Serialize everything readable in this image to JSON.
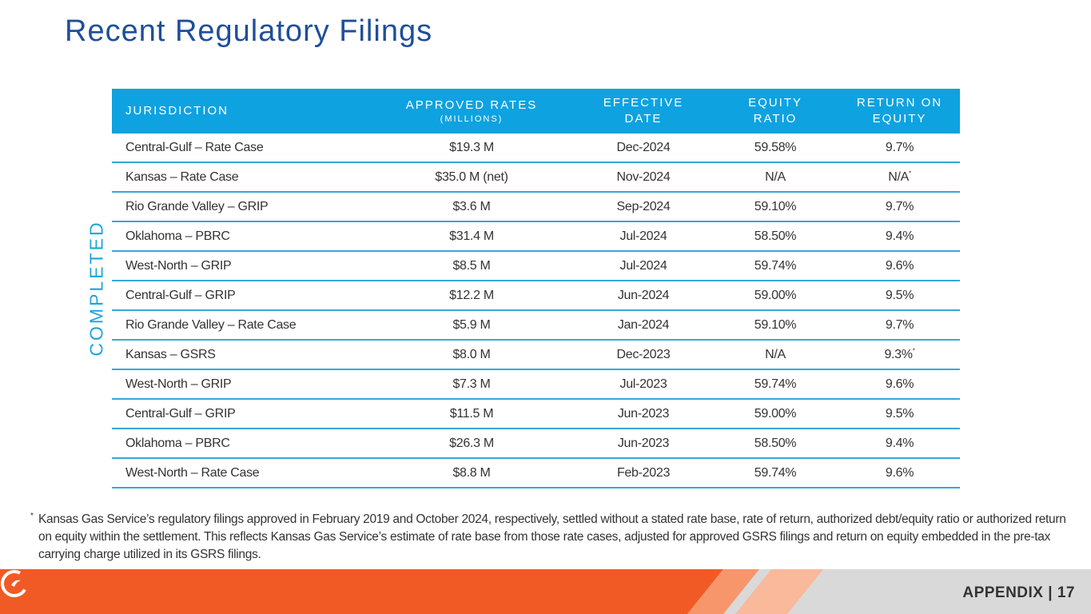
{
  "title": "Recent Regulatory Filings",
  "side_label": "COMPLETED",
  "table": {
    "headers": {
      "jurisdiction": "JURISDICTION",
      "approved_rates": "APPROVED RATES",
      "approved_rates_sub": "(MILLIONS)",
      "effective_date_1": "EFFECTIVE",
      "effective_date_2": "DATE",
      "equity_ratio_1": "EQUITY",
      "equity_ratio_2": "RATIO",
      "roe_1": "RETURN ON",
      "roe_2": "EQUITY"
    },
    "rows": [
      {
        "jurisdiction": "Central-Gulf – Rate Case",
        "rates": "$19.3 M",
        "date": "Dec-2024",
        "equity": "59.58%",
        "roe": "9.7%",
        "roe_note": ""
      },
      {
        "jurisdiction": "Kansas – Rate Case",
        "rates": "$35.0 M (net)",
        "date": "Nov-2024",
        "equity": "N/A",
        "roe": "N/A",
        "roe_note": "*"
      },
      {
        "jurisdiction": "Rio Grande Valley – GRIP",
        "rates": "$3.6 M",
        "date": "Sep-2024",
        "equity": "59.10%",
        "roe": "9.7%",
        "roe_note": ""
      },
      {
        "jurisdiction": "Oklahoma – PBRC",
        "rates": "$31.4 M",
        "date": "Jul-2024",
        "equity": "58.50%",
        "roe": "9.4%",
        "roe_note": ""
      },
      {
        "jurisdiction": "West-North – GRIP",
        "rates": "$8.5 M",
        "date": "Jul-2024",
        "equity": "59.74%",
        "roe": "9.6%",
        "roe_note": ""
      },
      {
        "jurisdiction": "Central-Gulf – GRIP",
        "rates": "$12.2 M",
        "date": "Jun-2024",
        "equity": "59.00%",
        "roe": "9.5%",
        "roe_note": ""
      },
      {
        "jurisdiction": "Rio Grande Valley – Rate Case",
        "rates": "$5.9 M",
        "date": "Jan-2024",
        "equity": "59.10%",
        "roe": "9.7%",
        "roe_note": ""
      },
      {
        "jurisdiction": "Kansas – GSRS",
        "rates": "$8.0 M",
        "date": "Dec-2023",
        "equity": "N/A",
        "roe": "9.3%",
        "roe_note": "*"
      },
      {
        "jurisdiction": "West-North – GRIP",
        "rates": "$7.3 M",
        "date": "Jul-2023",
        "equity": "59.74%",
        "roe": "9.6%",
        "roe_note": ""
      },
      {
        "jurisdiction": "Central-Gulf – GRIP",
        "rates": "$11.5 M",
        "date": "Jun-2023",
        "equity": "59.00%",
        "roe": "9.5%",
        "roe_note": ""
      },
      {
        "jurisdiction": "Oklahoma – PBRC",
        "rates": "$26.3 M",
        "date": "Jun-2023",
        "equity": "58.50%",
        "roe": "9.4%",
        "roe_note": ""
      },
      {
        "jurisdiction": "West-North – Rate Case",
        "rates": "$8.8 M",
        "date": "Feb-2023",
        "equity": "59.74%",
        "roe": "9.6%",
        "roe_note": ""
      }
    ]
  },
  "footnote": {
    "marker": "*",
    "text": "Kansas Gas Service’s regulatory filings approved in February 2019 and October 2024, respectively, settled without a stated rate base, rate of return, authorized debt/equity ratio or authorized return on equity within the settlement. This reflects Kansas Gas Service’s estimate of rate base from those rate cases, adjusted for approved GSRS filings and return on equity embedded in the pre-tax carrying charge utilized in its GSRS filings."
  },
  "footer": {
    "page_label": "APPENDIX | 17",
    "logo_icon": "company-logo-icon"
  },
  "colors": {
    "title": "#1f4e9a",
    "header_bg": "#0ea2e1",
    "accent_orange": "#f15a24",
    "accent_blue": "#1ea4dc"
  }
}
